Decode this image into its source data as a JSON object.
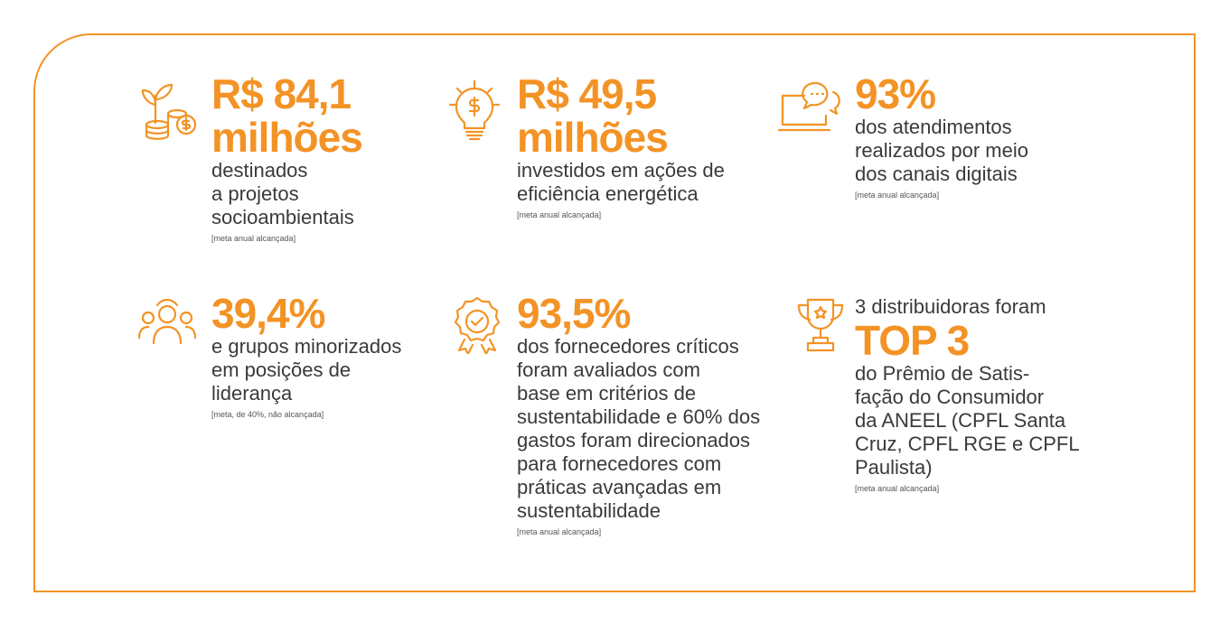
{
  "items": [
    {
      "headline": [
        "R$ 84,1",
        "milhões"
      ],
      "lines": [
        "destinados",
        "a projetos",
        "socioambientais"
      ],
      "note": "[meta anual alcançada]"
    },
    {
      "headline": [
        "R$ 49,5",
        "milhões"
      ],
      "lines": [
        "investidos em ações de",
        "eficiência energética"
      ],
      "note": "[meta anual alcançada]"
    },
    {
      "headline": [
        "93%"
      ],
      "lines": [
        "dos atendimentos",
        "realizados por meio",
        "dos canais digitais"
      ],
      "note": "[meta anual alcançada]"
    },
    {
      "headline": [
        "39,4%"
      ],
      "lines": [
        "e grupos minorizados",
        "em posições de",
        "liderança"
      ],
      "note": "[meta, de 40%, não alcançada]"
    },
    {
      "headline": [
        "93,5%"
      ],
      "lines": [
        "dos fornecedores críticos",
        "foram avaliados com",
        "base em critérios de",
        "sustentabilidade e 60% dos",
        "gastos foram direcionados",
        "para fornecedores com",
        "práticas avançadas em",
        "sustentabilidade"
      ],
      "note": "[meta anual alcançada]"
    },
    {
      "intro": "3 distribuidoras foram",
      "headline": [
        "TOP 3"
      ],
      "lines": [
        "do Prêmio de Satis-",
        "fação do Consumidor",
        "da ANEEL (CPFL Santa",
        "Cruz, CPFL RGE e CPFL",
        "Paulista)"
      ],
      "note": "[meta anual alcançada]"
    }
  ]
}
